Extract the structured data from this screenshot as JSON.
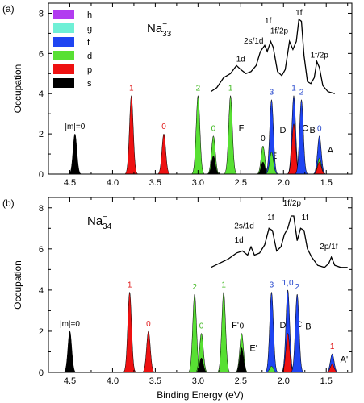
{
  "colors": {
    "h": "#b23cf0",
    "g": "#6ff0d6",
    "f": "#1f45f2",
    "d": "#58e033",
    "p": "#ee1111",
    "s": "#000000",
    "m_label_s": "#000000",
    "m_label_p": "#e01818",
    "m_label_d": "#3cb81c",
    "m_label_f": "#2244cc"
  },
  "axes": {
    "xlabel": "Binding Energy (eV)",
    "ylabel": "Occupation",
    "xlim": [
      1.2,
      4.75
    ],
    "ylim": [
      0,
      8.5
    ],
    "x_reversed": true,
    "xticks": [
      "4.5",
      "4.0",
      "3.5",
      "3.0",
      "2.5",
      "2.0",
      "1.5"
    ],
    "yticks": [
      "0",
      "2",
      "4",
      "6",
      "8"
    ]
  },
  "legend": {
    "placement": "top-left of panel (a)",
    "items": [
      {
        "label": "h",
        "key": "h"
      },
      {
        "label": "g",
        "key": "g"
      },
      {
        "label": "f",
        "key": "f"
      },
      {
        "label": "d",
        "key": "d"
      },
      {
        "label": "p",
        "key": "p"
      },
      {
        "label": "s",
        "key": "s"
      }
    ]
  },
  "chart_data": [
    {
      "type": "area",
      "panel_tag": "(a)",
      "title_base": "Na",
      "title_sub": "33",
      "title_sup": "−",
      "peaks": [
        {
          "x": 4.44,
          "height": 2.0,
          "layers": [
            {
              "key": "s",
              "value": 2.0
            }
          ],
          "m_label": "|m|=0",
          "m_color": "m_label_s",
          "letter": ""
        },
        {
          "x": 3.78,
          "height": 3.9,
          "layers": [
            {
              "key": "p",
              "value": 3.9
            }
          ],
          "m_label": "1",
          "m_color": "m_label_p",
          "letter": ""
        },
        {
          "x": 3.4,
          "height": 2.0,
          "layers": [
            {
              "key": "p",
              "value": 2.0
            }
          ],
          "m_label": "0",
          "m_color": "m_label_p",
          "letter": ""
        },
        {
          "x": 3.0,
          "height": 3.9,
          "layers": [
            {
              "key": "d",
              "value": 3.9
            }
          ],
          "m_label": "2",
          "m_color": "m_label_d",
          "letter": ""
        },
        {
          "x": 2.82,
          "height": 1.9,
          "layers": [
            {
              "key": "s",
              "value": 0.9
            },
            {
              "key": "d",
              "value": 1.0
            }
          ],
          "m_label": "0",
          "m_color": "m_label_d",
          "letter": ""
        },
        {
          "x": 2.62,
          "height": 3.9,
          "layers": [
            {
              "key": "d",
              "value": 3.9
            }
          ],
          "m_label": "1",
          "m_color": "m_label_d",
          "letter": "F"
        },
        {
          "x": 2.24,
          "height": 1.4,
          "layers": [
            {
              "key": "s",
              "value": 0.6
            },
            {
              "key": "d",
              "value": 0.8
            }
          ],
          "m_label": "0",
          "m_color": "m_label_s",
          "letter": "E"
        },
        {
          "x": 2.14,
          "height": 3.7,
          "layers": [
            {
              "key": "d",
              "value": 1.1
            },
            {
              "key": "f",
              "value": 2.6
            }
          ],
          "m_label": "3",
          "m_color": "m_label_f",
          "letter": "D"
        },
        {
          "x": 1.88,
          "height": 3.9,
          "layers": [
            {
              "key": "p",
              "value": 2.5
            },
            {
              "key": "f",
              "value": 1.4
            }
          ],
          "m_label": "1",
          "m_color": "m_label_f",
          "letter": "C"
        },
        {
          "x": 1.79,
          "height": 3.7,
          "layers": [
            {
              "key": "f",
              "value": 3.7
            }
          ],
          "m_label": "2",
          "m_color": "m_label_f",
          "letter": "B"
        },
        {
          "x": 1.58,
          "height": 1.9,
          "layers": [
            {
              "key": "p",
              "value": 0.6
            },
            {
              "key": "d",
              "value": 0.2
            },
            {
              "key": "f",
              "value": 1.1
            }
          ],
          "m_label": "0",
          "m_color": "m_label_f",
          "letter": "A"
        }
      ],
      "spectrum": [
        [
          2.85,
          4.1
        ],
        [
          2.78,
          4.3
        ],
        [
          2.7,
          4.8
        ],
        [
          2.62,
          5.0
        ],
        [
          2.55,
          5.4
        ],
        [
          2.5,
          5.2
        ],
        [
          2.44,
          5.0
        ],
        [
          2.38,
          5.1
        ],
        [
          2.32,
          5.4
        ],
        [
          2.27,
          6.1
        ],
        [
          2.22,
          6.4
        ],
        [
          2.19,
          6.1
        ],
        [
          2.15,
          6.6
        ],
        [
          2.12,
          6.3
        ],
        [
          2.07,
          5.1
        ],
        [
          2.02,
          4.9
        ],
        [
          1.98,
          5.2
        ],
        [
          1.93,
          6.6
        ],
        [
          1.89,
          6.2
        ],
        [
          1.85,
          6.6
        ],
        [
          1.82,
          7.7
        ],
        [
          1.79,
          7.6
        ],
        [
          1.76,
          5.9
        ],
        [
          1.72,
          4.6
        ],
        [
          1.68,
          4.5
        ],
        [
          1.64,
          4.8
        ],
        [
          1.61,
          5.6
        ],
        [
          1.58,
          5.3
        ],
        [
          1.54,
          4.4
        ],
        [
          1.48,
          4.1
        ],
        [
          1.4,
          4.0
        ]
      ],
      "spectrum_labels": [
        {
          "text": "1d",
          "x": 2.5,
          "y": 5.6
        },
        {
          "text": "2s/1d",
          "x": 2.35,
          "y": 6.5
        },
        {
          "text": "1f/2p",
          "x": 2.05,
          "y": 7.0
        },
        {
          "text": "1f",
          "x": 2.18,
          "y": 7.5
        },
        {
          "text": "1f",
          "x": 1.82,
          "y": 7.9
        },
        {
          "text": "1f/2p",
          "x": 1.58,
          "y": 5.8
        }
      ]
    },
    {
      "type": "area",
      "panel_tag": "(b)",
      "title_base": "Na",
      "title_sub": "34",
      "title_sup": "−",
      "peaks": [
        {
          "x": 4.5,
          "height": 2.0,
          "layers": [
            {
              "key": "s",
              "value": 2.0
            }
          ],
          "m_label": "|m|=0",
          "m_color": "m_label_s",
          "letter": ""
        },
        {
          "x": 3.8,
          "height": 3.9,
          "layers": [
            {
              "key": "p",
              "value": 3.9
            }
          ],
          "m_label": "1",
          "m_color": "m_label_p",
          "letter": ""
        },
        {
          "x": 3.58,
          "height": 2.0,
          "layers": [
            {
              "key": "p",
              "value": 2.0
            }
          ],
          "m_label": "0",
          "m_color": "m_label_p",
          "letter": ""
        },
        {
          "x": 3.04,
          "height": 3.8,
          "layers": [
            {
              "key": "d",
              "value": 3.8
            }
          ],
          "m_label": "2",
          "m_color": "m_label_d",
          "letter": ""
        },
        {
          "x": 2.96,
          "height": 1.9,
          "layers": [
            {
              "key": "s",
              "value": 0.7
            },
            {
              "key": "d",
              "value": 1.2
            }
          ],
          "m_label": "0",
          "m_color": "m_label_d",
          "letter": ""
        },
        {
          "x": 2.7,
          "height": 3.9,
          "layers": [
            {
              "key": "d",
              "value": 3.9
            }
          ],
          "m_label": "1",
          "m_color": "m_label_d",
          "letter": "F'"
        },
        {
          "x": 2.49,
          "height": 1.9,
          "layers": [
            {
              "key": "s",
              "value": 1.2
            },
            {
              "key": "d",
              "value": 0.7
            }
          ],
          "m_label": "0",
          "m_color": "m_label_s",
          "letter": "E'"
        },
        {
          "x": 2.14,
          "height": 3.9,
          "layers": [
            {
              "key": "d",
              "value": 0.3
            },
            {
              "key": "f",
              "value": 3.6
            }
          ],
          "m_label": "3",
          "m_color": "m_label_f",
          "letter": "D'"
        },
        {
          "x": 1.95,
          "height": 4.0,
          "layers": [
            {
              "key": "p",
              "value": 1.9
            },
            {
              "key": "f",
              "value": 2.1
            }
          ],
          "m_label": "1,0",
          "m_color": "m_label_f",
          "letter": "C'"
        },
        {
          "x": 1.84,
          "height": 3.8,
          "layers": [
            {
              "key": "f",
              "value": 3.8
            }
          ],
          "m_label": "2",
          "m_color": "m_label_f",
          "letter": "B'"
        },
        {
          "x": 1.43,
          "height": 0.9,
          "layers": [
            {
              "key": "p",
              "value": 0.4
            },
            {
              "key": "f",
              "value": 0.5
            }
          ],
          "m_label": "1",
          "m_color": "m_label_p",
          "letter": "A'"
        }
      ],
      "spectrum": [
        [
          2.85,
          5.1
        ],
        [
          2.75,
          5.3
        ],
        [
          2.65,
          5.5
        ],
        [
          2.55,
          5.8
        ],
        [
          2.48,
          5.9
        ],
        [
          2.42,
          5.7
        ],
        [
          2.38,
          6.1
        ],
        [
          2.34,
          5.7
        ],
        [
          2.28,
          5.8
        ],
        [
          2.22,
          6.2
        ],
        [
          2.17,
          7.0
        ],
        [
          2.13,
          6.9
        ],
        [
          2.08,
          5.9
        ],
        [
          2.03,
          6.1
        ],
        [
          1.99,
          6.7
        ],
        [
          1.95,
          7.0
        ],
        [
          1.91,
          7.6
        ],
        [
          1.88,
          7.6
        ],
        [
          1.84,
          6.4
        ],
        [
          1.8,
          7.0
        ],
        [
          1.76,
          6.9
        ],
        [
          1.72,
          6.0
        ],
        [
          1.67,
          5.6
        ],
        [
          1.6,
          5.2
        ],
        [
          1.52,
          5.1
        ],
        [
          1.47,
          5.3
        ],
        [
          1.44,
          5.6
        ],
        [
          1.4,
          5.2
        ],
        [
          1.33,
          5.1
        ],
        [
          1.25,
          5.1
        ]
      ],
      "spectrum_labels": [
        {
          "text": "1d",
          "x": 2.52,
          "y": 6.3
        },
        {
          "text": "2s/1d",
          "x": 2.46,
          "y": 7.0
        },
        {
          "text": "1f",
          "x": 2.15,
          "y": 7.4
        },
        {
          "text": "1f/2p",
          "x": 1.9,
          "y": 8.1
        },
        {
          "text": "1f",
          "x": 1.75,
          "y": 7.4
        },
        {
          "text": "2p/1f",
          "x": 1.47,
          "y": 6.0
        }
      ]
    }
  ]
}
